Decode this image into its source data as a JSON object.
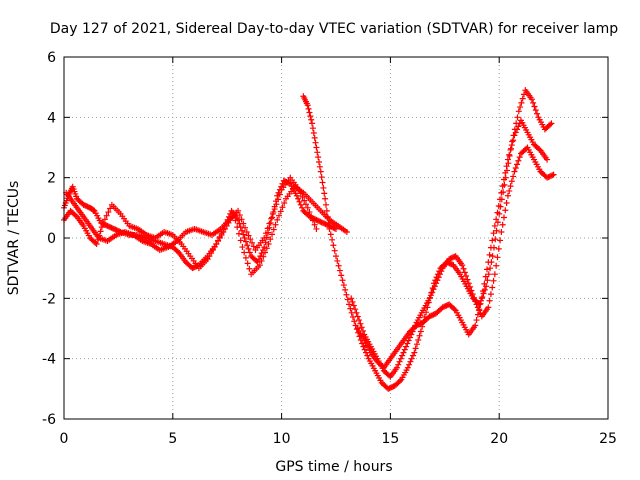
{
  "chart_data": {
    "type": "scatter",
    "title": "Day 127 of 2021, Sidereal Day-to-day VTEC variation (SDTVAR) for receiver lamp",
    "xlabel": "GPS time / hours",
    "ylabel": "SDTVAR / TECUs",
    "xlim": [
      0,
      25
    ],
    "ylim": [
      -6,
      6
    ],
    "xticks": [
      0,
      5,
      10,
      15,
      20,
      25
    ],
    "yticks": [
      -6,
      -4,
      -2,
      0,
      2,
      4,
      6
    ],
    "grid": true,
    "marker": "plus",
    "color": "#ff0000",
    "series": [
      {
        "x": [
          0.0,
          0.2,
          0.4,
          0.6,
          0.9,
          1.2,
          1.4,
          1.7,
          2.0,
          2.3,
          2.6,
          3.0,
          3.4,
          3.8,
          4.2,
          4.6,
          5.0,
          5.3,
          5.6,
          5.9,
          6.2,
          6.6,
          7.0,
          7.4,
          7.7,
          8.0,
          8.3,
          8.6,
          8.9,
          9.2,
          9.5,
          9.8,
          10.1,
          10.4,
          10.7,
          11.0,
          11.3,
          11.6,
          11.9,
          12.2,
          12.5
        ],
        "y": [
          1.0,
          1.4,
          1.7,
          1.3,
          1.1,
          1.0,
          0.9,
          0.5,
          0.4,
          0.3,
          0.2,
          0.1,
          0.1,
          0.0,
          -0.1,
          -0.2,
          -0.3,
          -0.5,
          -0.8,
          -1.0,
          -0.9,
          -0.6,
          -0.2,
          0.4,
          0.9,
          0.6,
          0.0,
          -0.6,
          -0.8,
          -0.3,
          0.5,
          1.4,
          1.9,
          1.8,
          1.4,
          0.9,
          0.7,
          0.6,
          0.5,
          0.4,
          0.3
        ]
      },
      {
        "x": [
          0.0,
          0.3,
          0.6,
          0.9,
          1.2,
          1.5,
          1.8,
          2.2,
          2.6,
          3.0,
          3.4,
          3.8,
          4.2,
          4.6,
          5.0,
          5.4,
          5.8,
          6.2,
          6.6,
          7.0,
          7.4,
          7.8,
          8.2,
          8.6,
          9.0,
          9.4,
          9.8,
          10.2,
          10.6,
          11.0,
          11.4,
          11.8,
          12.2,
          12.6,
          13.0
        ],
        "y": [
          0.6,
          0.9,
          0.7,
          0.4,
          0.0,
          -0.2,
          0.5,
          1.1,
          0.8,
          0.4,
          0.3,
          0.1,
          0.0,
          0.2,
          0.1,
          -0.2,
          -0.6,
          -1.0,
          -0.7,
          -0.2,
          0.3,
          0.8,
          -0.3,
          -1.2,
          -0.9,
          -0.2,
          0.6,
          1.3,
          1.7,
          1.5,
          1.2,
          0.9,
          0.6,
          0.4,
          0.2
        ]
      },
      {
        "x": [
          0.1,
          0.4,
          0.7,
          1.0,
          1.3,
          1.6,
          2.0,
          2.4,
          2.8,
          3.2,
          3.6,
          4.0,
          4.4,
          4.8,
          5.2,
          5.6,
          6.0,
          6.4,
          6.8,
          7.2,
          7.6,
          8.0,
          8.4,
          8.8,
          9.2,
          9.6,
          10.0,
          10.4,
          10.8,
          11.2,
          11.6
        ],
        "y": [
          1.5,
          1.2,
          0.9,
          0.6,
          0.3,
          0.0,
          -0.1,
          0.1,
          0.2,
          0.1,
          -0.1,
          -0.2,
          -0.4,
          -0.3,
          -0.1,
          0.2,
          0.3,
          0.2,
          0.1,
          0.3,
          0.6,
          0.9,
          0.2,
          -0.4,
          0.0,
          0.8,
          1.6,
          2.0,
          1.6,
          1.0,
          0.3
        ]
      },
      {
        "x": [
          11.0,
          11.2,
          11.4,
          11.6,
          11.8,
          12.0,
          12.2,
          12.5,
          12.8,
          13.1,
          13.4,
          13.7,
          14.0,
          14.3,
          14.6,
          14.9,
          15.2,
          15.5,
          15.8,
          16.1,
          16.4,
          16.7,
          17.0,
          17.3,
          17.6,
          17.9,
          18.2,
          18.5,
          18.8,
          19.1,
          19.4,
          19.7,
          20.0,
          20.3,
          20.6,
          20.9,
          21.2,
          21.5,
          21.8,
          22.1,
          22.4
        ],
        "y": [
          4.7,
          4.4,
          3.8,
          3.0,
          2.2,
          1.3,
          0.3,
          -0.6,
          -1.4,
          -2.2,
          -2.9,
          -3.5,
          -4.0,
          -4.4,
          -4.8,
          -5.0,
          -4.9,
          -4.7,
          -4.3,
          -3.8,
          -3.1,
          -2.3,
          -1.5,
          -1.0,
          -0.8,
          -0.9,
          -1.2,
          -1.6,
          -2.0,
          -2.2,
          -1.6,
          -0.6,
          0.8,
          2.0,
          3.2,
          4.2,
          4.9,
          4.6,
          4.0,
          3.6,
          3.8
        ]
      },
      {
        "x": [
          13.2,
          13.5,
          13.8,
          14.1,
          14.4,
          14.7,
          15.0,
          15.3,
          15.6,
          15.9,
          16.2,
          16.5,
          16.8,
          17.1,
          17.4,
          17.7,
          18.0,
          18.3,
          18.6,
          18.9,
          19.2,
          19.5,
          19.8,
          20.1,
          20.4,
          20.7,
          21.0,
          21.3,
          21.6,
          21.9,
          22.2,
          22.5
        ],
        "y": [
          -2.0,
          -2.6,
          -3.2,
          -3.6,
          -4.0,
          -4.4,
          -4.6,
          -4.3,
          -3.8,
          -3.3,
          -2.8,
          -2.4,
          -2.0,
          -1.5,
          -1.0,
          -0.7,
          -0.6,
          -0.9,
          -1.5,
          -2.1,
          -2.6,
          -2.3,
          -1.2,
          0.2,
          1.4,
          2.2,
          2.8,
          3.0,
          2.6,
          2.2,
          2.0,
          2.1
        ]
      },
      {
        "x": [
          13.5,
          13.8,
          14.1,
          14.4,
          14.7,
          15.0,
          15.3,
          15.6,
          15.9,
          16.2,
          16.5,
          16.8,
          17.1,
          17.4,
          17.7,
          18.0,
          18.3,
          18.6,
          18.9,
          19.2,
          19.5,
          19.8,
          20.1,
          20.4,
          20.7,
          21.0,
          21.3,
          21.6,
          21.9,
          22.2
        ],
        "y": [
          -3.0,
          -3.4,
          -3.8,
          -4.1,
          -4.3,
          -4.0,
          -3.7,
          -3.4,
          -3.1,
          -2.9,
          -2.8,
          -2.6,
          -2.5,
          -2.3,
          -2.2,
          -2.4,
          -2.8,
          -3.2,
          -2.9,
          -2.0,
          -0.8,
          0.4,
          1.5,
          2.6,
          3.4,
          3.9,
          3.5,
          3.1,
          2.9,
          2.6
        ]
      }
    ]
  }
}
